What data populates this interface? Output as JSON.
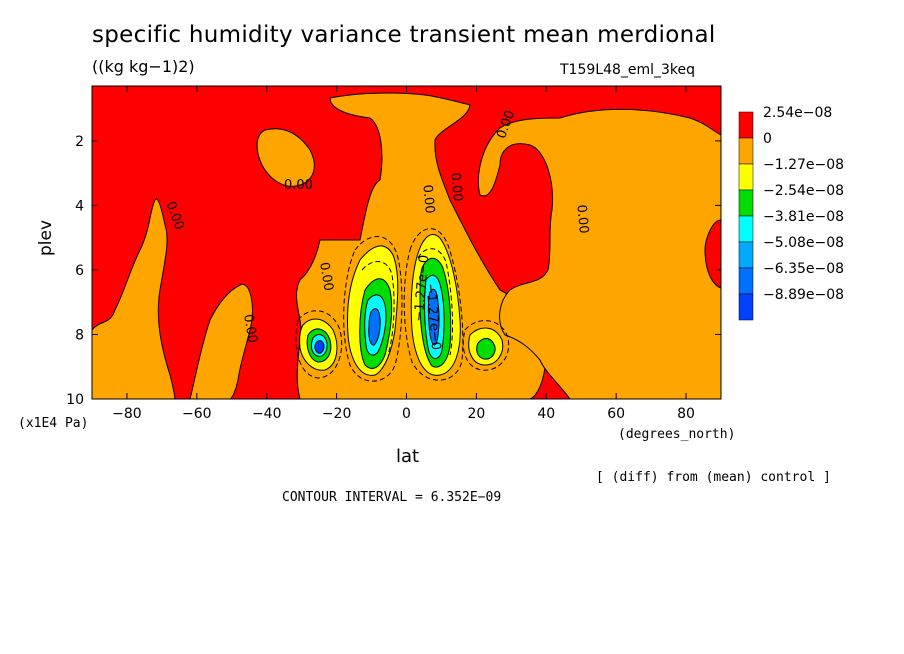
{
  "chart_data": {
    "type": "heatmap",
    "title": "specific humidity variance transient mean merdional",
    "units": "((kg kg−1)2)",
    "run_label": "T159L48_eml_3keq",
    "xlabel": "lat",
    "x_units": "(degrees_north)",
    "ylabel": "plev",
    "y_units": "(x1E4 Pa)",
    "xlim": [
      -90,
      90
    ],
    "ylim": [
      10,
      0.3
    ],
    "x_ticks": [
      "−80",
      "−60",
      "−40",
      "−20",
      "0",
      "20",
      "40",
      "60",
      "80"
    ],
    "x_tick_values": [
      -80,
      -60,
      -40,
      -20,
      0,
      20,
      40,
      60,
      80
    ],
    "y_ticks": [
      "2",
      "4",
      "6",
      "8",
      "10"
    ],
    "y_tick_values": [
      2,
      4,
      6,
      8,
      10
    ],
    "legend_placement": "right",
    "legend": [
      {
        "label": "2.54e−08",
        "color": "#ff0000"
      },
      {
        "label": "0",
        "color": "#ffa500"
      },
      {
        "label": "−1.27e−08",
        "color": "#ffff00"
      },
      {
        "label": "−2.54e−08",
        "color": "#00dd00"
      },
      {
        "label": "−3.81e−08",
        "color": "#00ffff"
      },
      {
        "label": "−5.08e−08",
        "color": "#00aaff"
      },
      {
        "label": "−6.35e−08",
        "color": "#0070ff"
      },
      {
        "label": "−8.89e−08",
        "color": "#0040ff"
      }
    ],
    "contour_labels": [
      "0.00",
      "0.00",
      "0.00",
      "0.00",
      "0.00",
      "0.00",
      "0.00",
      "0.00",
      "0.00",
      "−1.27e−0",
      "−1.27e−0"
    ],
    "contour_interval_text": "CONTOUR INTERVAL = 6.352E−09",
    "difference_note": "[ (diff) from (mean) control ]"
  }
}
